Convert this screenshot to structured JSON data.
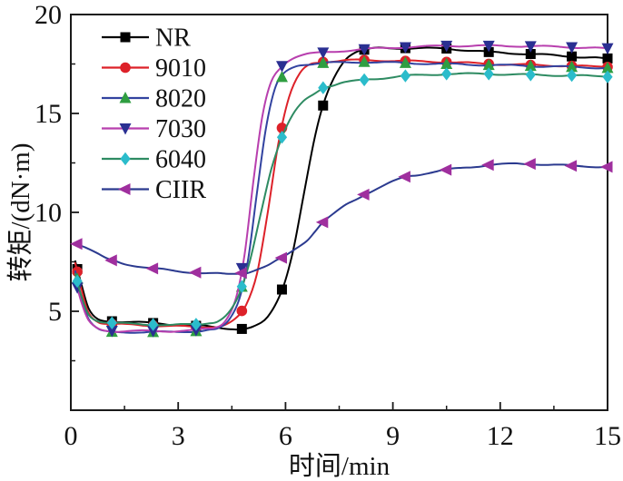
{
  "chart_data": {
    "type": "line",
    "title": "",
    "xlabel": "时间/min",
    "ylabel": "转矩/(dN·m)",
    "xlim": [
      0,
      15
    ],
    "ylim": [
      0,
      20
    ],
    "x_major_ticks": [
      0,
      3,
      6,
      9,
      12,
      15
    ],
    "x_minor_ticks": [
      1.5,
      4.5,
      7.5,
      10.5,
      13.5
    ],
    "y_major_ticks": [
      5,
      10,
      15,
      20
    ],
    "y_minor_ticks": [
      2.5,
      7.5,
      12.5,
      17.5
    ],
    "grid": false,
    "legend_position": "top-left",
    "marker_times": [
      0.18,
      1.15,
      2.3,
      3.5,
      4.78,
      5.9,
      7.05,
      8.2,
      9.35,
      10.5,
      11.68,
      12.85,
      14.0,
      15.0
    ],
    "series": [
      {
        "name": "NR",
        "line_color": "#000000",
        "marker": "square",
        "marker_color": "#000000",
        "points": [
          [
            0.12,
            7.55
          ],
          [
            0.3,
            6.3
          ],
          [
            0.5,
            5.1
          ],
          [
            0.75,
            4.6
          ],
          [
            1.1,
            4.5
          ],
          [
            1.7,
            4.45
          ],
          [
            2.4,
            4.4
          ],
          [
            3.1,
            4.3
          ],
          [
            3.7,
            4.25
          ],
          [
            4.3,
            4.15
          ],
          [
            4.75,
            4.1
          ],
          [
            5.1,
            4.2
          ],
          [
            5.5,
            4.7
          ],
          [
            5.9,
            6.1
          ],
          [
            6.2,
            8.0
          ],
          [
            6.5,
            10.8
          ],
          [
            6.8,
            13.6
          ],
          [
            7.05,
            15.4
          ],
          [
            7.35,
            16.8
          ],
          [
            7.7,
            17.8
          ],
          [
            8.1,
            18.2
          ],
          [
            8.6,
            18.3
          ],
          [
            9.4,
            18.3
          ],
          [
            10.5,
            18.28
          ],
          [
            11.7,
            18.1
          ],
          [
            12.9,
            18.0
          ],
          [
            14.0,
            17.88
          ],
          [
            15,
            17.78
          ]
        ]
      },
      {
        "name": "9010",
        "line_color": "#dd2129",
        "marker": "circle",
        "marker_color": "#dd2129",
        "points": [
          [
            0.12,
            7.45
          ],
          [
            0.3,
            6.1
          ],
          [
            0.5,
            4.95
          ],
          [
            0.8,
            4.45
          ],
          [
            1.2,
            4.35
          ],
          [
            2.0,
            4.3
          ],
          [
            2.8,
            4.25
          ],
          [
            3.6,
            4.2
          ],
          [
            4.2,
            4.25
          ],
          [
            4.6,
            4.6
          ],
          [
            4.9,
            5.3
          ],
          [
            5.2,
            6.9
          ],
          [
            5.5,
            10.0
          ],
          [
            5.8,
            13.5
          ],
          [
            6.1,
            15.8
          ],
          [
            6.4,
            17.0
          ],
          [
            6.7,
            17.5
          ],
          [
            7.05,
            17.6
          ],
          [
            7.7,
            17.68
          ],
          [
            8.2,
            17.7
          ],
          [
            9.35,
            17.65
          ],
          [
            10.5,
            17.6
          ],
          [
            11.7,
            17.5
          ],
          [
            12.9,
            17.45
          ],
          [
            14.0,
            17.4
          ],
          [
            15,
            17.35
          ]
        ]
      },
      {
        "name": "8020",
        "line_color": "#3243a0",
        "marker": "triangle-up",
        "marker_color": "#2f9e41",
        "points": [
          [
            0.12,
            7.1
          ],
          [
            0.3,
            5.7
          ],
          [
            0.5,
            4.6
          ],
          [
            0.8,
            4.05
          ],
          [
            1.2,
            3.95
          ],
          [
            2.0,
            3.95
          ],
          [
            2.8,
            3.95
          ],
          [
            3.6,
            4.0
          ],
          [
            4.1,
            4.1
          ],
          [
            4.4,
            4.5
          ],
          [
            4.7,
            5.6
          ],
          [
            4.95,
            7.6
          ],
          [
            5.2,
            11.0
          ],
          [
            5.45,
            14.2
          ],
          [
            5.7,
            16.2
          ],
          [
            5.95,
            17.0
          ],
          [
            6.3,
            17.4
          ],
          [
            6.7,
            17.5
          ],
          [
            7.05,
            17.55
          ],
          [
            8.2,
            17.6
          ],
          [
            9.35,
            17.55
          ],
          [
            10.5,
            17.5
          ],
          [
            11.7,
            17.45
          ],
          [
            12.9,
            17.4
          ],
          [
            14.0,
            17.35
          ],
          [
            15,
            17.3
          ]
        ]
      },
      {
        "name": "7030",
        "line_color": "#b83fae",
        "marker": "triangle-down",
        "marker_color": "#2a2f92",
        "points": [
          [
            0.12,
            6.6
          ],
          [
            0.3,
            5.4
          ],
          [
            0.5,
            4.5
          ],
          [
            0.8,
            4.1
          ],
          [
            1.2,
            4.0
          ],
          [
            2.0,
            4.0
          ],
          [
            2.8,
            4.0
          ],
          [
            3.5,
            4.05
          ],
          [
            4.0,
            4.15
          ],
          [
            4.3,
            4.5
          ],
          [
            4.6,
            5.6
          ],
          [
            4.85,
            7.8
          ],
          [
            5.1,
            11.5
          ],
          [
            5.35,
            14.8
          ],
          [
            5.6,
            16.6
          ],
          [
            5.9,
            17.4
          ],
          [
            6.2,
            17.8
          ],
          [
            6.6,
            18.0
          ],
          [
            7.05,
            18.08
          ],
          [
            7.7,
            18.18
          ],
          [
            8.2,
            18.25
          ],
          [
            9.35,
            18.35
          ],
          [
            10.5,
            18.42
          ],
          [
            11.7,
            18.42
          ],
          [
            12.9,
            18.4
          ],
          [
            14.0,
            18.35
          ],
          [
            15,
            18.3
          ]
        ]
      },
      {
        "name": "6040",
        "line_color": "#2e8b62",
        "marker": "diamond",
        "marker_color": "#2bbccb",
        "points": [
          [
            0.12,
            6.9
          ],
          [
            0.3,
            5.75
          ],
          [
            0.5,
            4.85
          ],
          [
            0.8,
            4.5
          ],
          [
            1.2,
            4.4
          ],
          [
            2.0,
            4.35
          ],
          [
            2.8,
            4.3
          ],
          [
            3.6,
            4.35
          ],
          [
            4.1,
            4.5
          ],
          [
            4.4,
            4.9
          ],
          [
            4.7,
            5.8
          ],
          [
            5.0,
            7.5
          ],
          [
            5.3,
            9.9
          ],
          [
            5.6,
            12.2
          ],
          [
            5.9,
            13.8
          ],
          [
            6.2,
            14.9
          ],
          [
            6.5,
            15.6
          ],
          [
            6.8,
            16.0
          ],
          [
            7.05,
            16.3
          ],
          [
            7.6,
            16.55
          ],
          [
            8.2,
            16.7
          ],
          [
            9.35,
            16.9
          ],
          [
            10.5,
            17.0
          ],
          [
            11.7,
            17.0
          ],
          [
            12.9,
            16.95
          ],
          [
            14.0,
            16.92
          ],
          [
            15,
            16.85
          ]
        ]
      },
      {
        "name": "CIIR",
        "line_color": "#2b3a8f",
        "marker": "triangle-left",
        "marker_color": "#9f2f9e",
        "points": [
          [
            0.12,
            8.45
          ],
          [
            0.4,
            8.25
          ],
          [
            0.7,
            7.95
          ],
          [
            1.0,
            7.65
          ],
          [
            1.5,
            7.4
          ],
          [
            2.2,
            7.18
          ],
          [
            3.0,
            7.02
          ],
          [
            3.8,
            6.92
          ],
          [
            4.4,
            6.87
          ],
          [
            4.9,
            6.95
          ],
          [
            5.5,
            7.3
          ],
          [
            6.0,
            7.8
          ],
          [
            6.6,
            8.6
          ],
          [
            7.05,
            9.5
          ],
          [
            7.7,
            10.4
          ],
          [
            8.2,
            10.9
          ],
          [
            9.0,
            11.55
          ],
          [
            9.35,
            11.8
          ],
          [
            10.0,
            12.0
          ],
          [
            10.5,
            12.15
          ],
          [
            11.2,
            12.3
          ],
          [
            11.7,
            12.4
          ],
          [
            12.4,
            12.45
          ],
          [
            12.9,
            12.45
          ],
          [
            13.5,
            12.4
          ],
          [
            14.0,
            12.35
          ],
          [
            15,
            12.3
          ]
        ]
      }
    ]
  }
}
